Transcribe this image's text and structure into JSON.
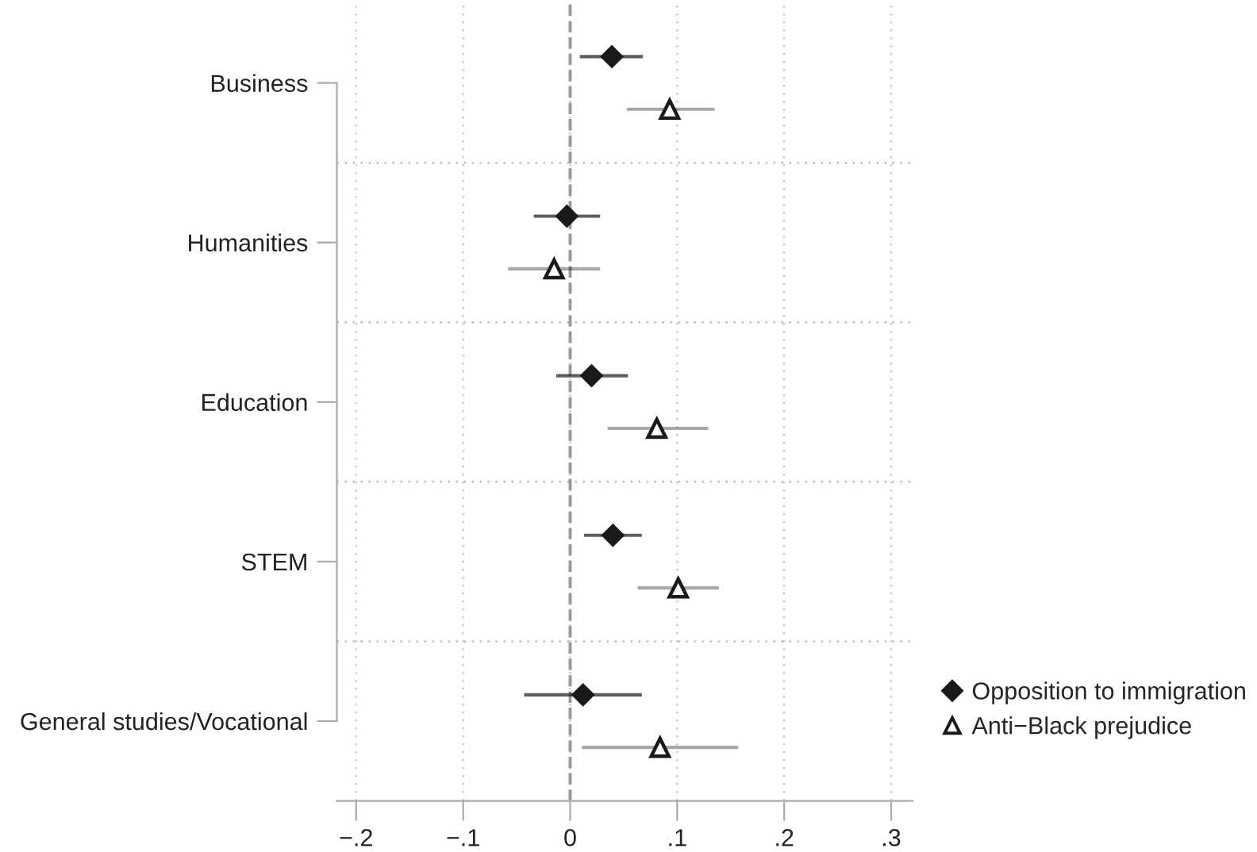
{
  "chart_data": {
    "type": "scatter",
    "orientation": "horizontal",
    "categories": [
      "Business",
      "Humanities",
      "Education",
      "STEM",
      "General studies/Vocational"
    ],
    "series": [
      {
        "name": "Opposition to immigration",
        "color": "#1a1a1a",
        "marker": "diamond",
        "values": [
          0.039,
          -0.003,
          0.02,
          0.04,
          0.012
        ],
        "errors": [
          [
            0.009,
            0.068
          ],
          [
            -0.034,
            0.028
          ],
          [
            -0.013,
            0.054
          ],
          [
            0.013,
            0.067
          ],
          [
            -0.043,
            0.067
          ]
        ]
      },
      {
        "name": "Anti−Black prejudice",
        "color": "#1a1a1a",
        "marker": "triangle",
        "values": [
          0.093,
          -0.015,
          0.081,
          0.101,
          0.084
        ],
        "errors": [
          [
            0.053,
            0.135
          ],
          [
            -0.058,
            0.028
          ],
          [
            0.035,
            0.129
          ],
          [
            0.063,
            0.139
          ],
          [
            0.011,
            0.157
          ]
        ]
      }
    ],
    "xlim": [
      -0.218,
      0.32
    ],
    "xticks": [
      {
        "value": -0.2,
        "label": "−.2"
      },
      {
        "value": -0.1,
        "label": "−.1"
      },
      0,
      {
        "value": 0.1,
        "label": ".1"
      },
      {
        "value": 0.2,
        "label": ".2"
      },
      {
        "value": 0.3,
        "label": ".3"
      }
    ],
    "ref_lines": [
      {
        "axis": "x",
        "value": 0,
        "color": "#999999",
        "line_style": "dashed"
      }
    ],
    "grid": true,
    "legend": "bottom right"
  }
}
